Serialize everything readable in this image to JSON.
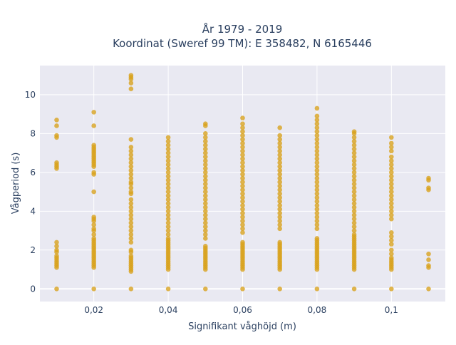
{
  "chart_data": {
    "type": "scatter",
    "title_line1": "År 1979 - 2019",
    "title_line2": "Koordinat (Sweref 99 TM): E 358482, N 6165446",
    "xlabel": "Signifikant våghöjd (m)",
    "ylabel": "Vågperiod (s)",
    "xlim": [
      0.0055,
      0.1145
    ],
    "ylim": [
      -0.65,
      11.5
    ],
    "xticks": [
      0.02,
      0.04,
      0.06,
      0.08,
      0.1
    ],
    "xtick_labels": [
      "0,02",
      "0,04",
      "0,06",
      "0,08",
      "0,1"
    ],
    "yticks": [
      0,
      2,
      4,
      6,
      8,
      10
    ],
    "ytick_labels": [
      "0",
      "2",
      "4",
      "6",
      "8",
      "10"
    ],
    "grid": true,
    "plot_background": "#e9e9f2",
    "gridline_color": "#ffffff",
    "marker_color": "#d9a21b",
    "columns": [
      {
        "x": 0.01,
        "values": [
          0,
          1.1,
          1.2,
          1.3,
          1.4,
          1.5,
          1.6,
          1.7,
          1.9,
          2.0,
          2.2,
          2.4,
          6.2,
          6.3,
          6.4,
          6.5,
          7.8,
          7.9,
          8.4,
          8.7
        ]
      },
      {
        "x": 0.02,
        "values": [
          0,
          1.1,
          1.2,
          1.3,
          1.4,
          1.5,
          1.6,
          1.7,
          1.8,
          1.9,
          2.0,
          2.1,
          2.2,
          2.3,
          2.4,
          2.5,
          2.6,
          2.8,
          3.0,
          3.1,
          3.3,
          3.5,
          3.6,
          3.7,
          5.0,
          5.9,
          6.0,
          6.3,
          6.4,
          6.5,
          6.6,
          6.7,
          6.8,
          6.9,
          7.0,
          7.1,
          7.2,
          7.3,
          7.4,
          8.4,
          9.1
        ]
      },
      {
        "x": 0.03,
        "values": [
          0,
          0.9,
          1.0,
          1.1,
          1.2,
          1.3,
          1.4,
          1.5,
          1.6,
          1.7,
          1.9,
          2.0,
          2.4,
          2.6,
          2.8,
          3.0,
          3.2,
          3.4,
          3.6,
          3.8,
          4.0,
          4.2,
          4.4,
          4.6,
          4.9,
          5.0,
          5.2,
          5.4,
          5.5,
          5.7,
          5.9,
          6.1,
          6.3,
          6.5,
          6.7,
          6.9,
          7.1,
          7.3,
          7.7,
          10.3,
          10.6,
          10.8,
          10.9,
          11.0
        ]
      },
      {
        "x": 0.04,
        "values": [
          0,
          1.0,
          1.1,
          1.2,
          1.3,
          1.4,
          1.5,
          1.6,
          1.7,
          1.8,
          1.9,
          2.0,
          2.1,
          2.2,
          2.3,
          2.4,
          2.5,
          2.6,
          2.8,
          3.0,
          3.2,
          3.4,
          3.6,
          3.8,
          4.0,
          4.2,
          4.4,
          4.6,
          4.8,
          5.0,
          5.2,
          5.4,
          5.6,
          5.8,
          6.0,
          6.2,
          6.4,
          6.6,
          6.8,
          7.0,
          7.2,
          7.4,
          7.6,
          7.8
        ]
      },
      {
        "x": 0.05,
        "values": [
          0,
          1.0,
          1.1,
          1.2,
          1.3,
          1.4,
          1.5,
          1.6,
          1.7,
          1.8,
          1.9,
          2.0,
          2.1,
          2.2,
          2.6,
          2.8,
          3.0,
          3.2,
          3.4,
          3.6,
          3.8,
          4.0,
          4.2,
          4.4,
          4.6,
          4.8,
          5.0,
          5.2,
          5.4,
          5.6,
          5.8,
          6.0,
          6.2,
          6.4,
          6.6,
          6.8,
          7.0,
          7.2,
          7.4,
          7.6,
          7.8,
          8.0,
          8.4,
          8.5
        ]
      },
      {
        "x": 0.06,
        "values": [
          0,
          1.0,
          1.1,
          1.2,
          1.3,
          1.4,
          1.5,
          1.6,
          1.7,
          1.8,
          1.9,
          2.0,
          2.1,
          2.2,
          2.3,
          2.4,
          2.9,
          3.1,
          3.3,
          3.5,
          3.7,
          3.9,
          4.1,
          4.3,
          4.5,
          4.7,
          4.9,
          5.1,
          5.3,
          5.5,
          5.7,
          5.9,
          6.1,
          6.3,
          6.5,
          6.7,
          6.9,
          7.1,
          7.3,
          7.5,
          7.7,
          7.9,
          8.1,
          8.3,
          8.5,
          8.8
        ]
      },
      {
        "x": 0.07,
        "values": [
          0,
          1.0,
          1.1,
          1.2,
          1.3,
          1.4,
          1.5,
          1.6,
          1.7,
          1.8,
          1.9,
          2.0,
          2.1,
          2.2,
          2.3,
          2.4,
          3.1,
          3.3,
          3.5,
          3.7,
          3.9,
          4.1,
          4.3,
          4.5,
          4.7,
          4.9,
          5.1,
          5.3,
          5.5,
          5.7,
          5.9,
          6.1,
          6.3,
          6.5,
          6.7,
          6.9,
          7.1,
          7.3,
          7.5,
          7.7,
          7.9,
          8.3
        ]
      },
      {
        "x": 0.08,
        "values": [
          0,
          1.0,
          1.1,
          1.2,
          1.3,
          1.4,
          1.5,
          1.6,
          1.7,
          1.8,
          1.9,
          2.0,
          2.1,
          2.2,
          2.3,
          2.4,
          2.5,
          2.6,
          3.1,
          3.3,
          3.5,
          3.7,
          3.9,
          4.1,
          4.3,
          4.5,
          4.7,
          4.9,
          5.1,
          5.3,
          5.5,
          5.7,
          5.9,
          6.1,
          6.3,
          6.5,
          6.7,
          6.9,
          7.1,
          7.3,
          7.5,
          7.7,
          7.9,
          8.1,
          8.3,
          8.5,
          8.7,
          8.9,
          9.3
        ]
      },
      {
        "x": 0.09,
        "values": [
          0,
          1.0,
          1.1,
          1.2,
          1.3,
          1.4,
          1.5,
          1.6,
          1.7,
          1.8,
          1.9,
          2.0,
          2.1,
          2.2,
          2.3,
          2.4,
          2.5,
          2.6,
          2.7,
          2.8,
          3.0,
          3.2,
          3.4,
          3.6,
          3.8,
          4.0,
          4.2,
          4.4,
          4.6,
          4.8,
          5.0,
          5.2,
          5.4,
          5.6,
          5.8,
          6.0,
          6.2,
          6.4,
          6.6,
          6.8,
          7.0,
          7.2,
          7.4,
          7.6,
          7.8,
          8.0,
          8.1
        ]
      },
      {
        "x": 0.1,
        "values": [
          0,
          1.0,
          1.1,
          1.2,
          1.3,
          1.4,
          1.5,
          1.6,
          1.8,
          2.0,
          2.3,
          2.5,
          2.7,
          2.9,
          3.6,
          3.8,
          4.0,
          4.2,
          4.4,
          4.6,
          4.8,
          5.0,
          5.2,
          5.4,
          5.6,
          5.8,
          6.0,
          6.2,
          6.4,
          6.6,
          6.8,
          7.1,
          7.3,
          7.5,
          7.8
        ]
      },
      {
        "x": 0.11,
        "values": [
          0,
          1.1,
          1.2,
          1.5,
          1.8,
          5.1,
          5.2,
          5.6,
          5.7
        ]
      }
    ]
  }
}
